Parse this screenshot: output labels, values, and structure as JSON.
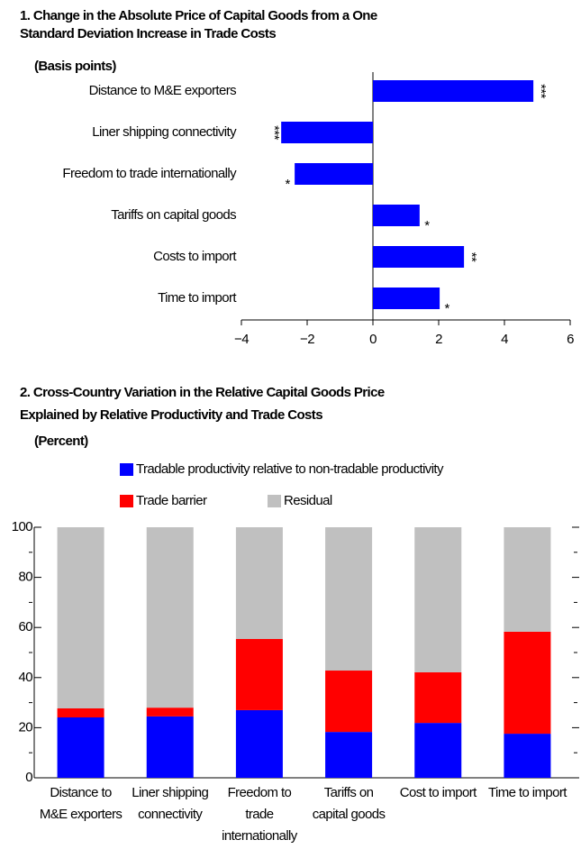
{
  "chart_data": [
    {
      "type": "hbar",
      "title": "1. Change in the Absolute Price of Capital Goods from a One\nStandard Deviation Increase in Trade Costs",
      "subtitle": "(Basis points)",
      "categories": [
        "Distance to M&E exporters",
        "Liner shipping connectivity",
        "Freedom to trade internationally",
        "Tariffs on capital goods",
        "Costs to import",
        "Time to import"
      ],
      "values": [
        4.88,
        -2.79,
        -2.38,
        1.42,
        2.77,
        2.03
      ],
      "significance": [
        "***",
        "***",
        "*",
        "*",
        "**",
        "*"
      ],
      "color": "#0000ff",
      "xlim": [
        -4,
        6
      ],
      "xticks": [
        {
          "value": -4,
          "label": "−4"
        },
        {
          "value": -2,
          "label": "−2"
        },
        0,
        2,
        4,
        6
      ]
    },
    {
      "type": "stacked-bar",
      "title": "2. Cross-Country Variation in the Relative Capital Goods Price\nExplained by Relative Productivity and Trade Costs",
      "subtitle": "(Percent)",
      "categories": [
        "Distance to\nM&E exporters",
        "Liner shipping\nconnectivity",
        "Freedom to\ntrade\ninternationally",
        "Tariffs on\ncapital goods",
        "Cost to import",
        "Time to import"
      ],
      "series": [
        {
          "name": "Tradable productivity relative to non-tradable productivity",
          "color": "#0000ff",
          "values": [
            24.1,
            24.5,
            27,
            18.3,
            21.9,
            17.6
          ]
        },
        {
          "name": "Trade barrier",
          "color": "#ff0000",
          "values": [
            3.6,
            3.5,
            28.4,
            24.5,
            20.2,
            40.7
          ]
        },
        {
          "name": "Residual",
          "color": "#c0c0c0",
          "values": [
            72.3,
            72,
            44.6,
            57.2,
            57.9,
            41.7
          ]
        }
      ],
      "ylim": [
        0,
        100
      ],
      "yticks": [
        0,
        20,
        40,
        60,
        80,
        100
      ],
      "yminorticks": [
        10,
        30,
        50,
        70,
        90
      ]
    }
  ]
}
